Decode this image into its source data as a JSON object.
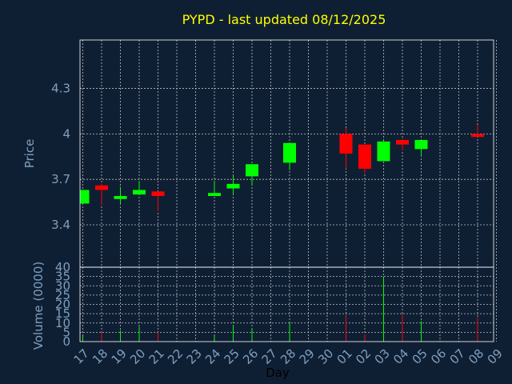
{
  "chart_data": {
    "type": "candlestick",
    "title": "PYPD - last updated 08/12/2025",
    "xlabel": "Day",
    "ylabel": "Price",
    "volume_label": "Volume (0000)",
    "ylim": [
      3.12,
      4.62
    ],
    "y_ticks": [
      "3.4",
      "3.7",
      "4",
      "4.3"
    ],
    "volume_ylim": [
      0,
      40
    ],
    "volume_ticks": [
      "0",
      "5",
      "10",
      "15",
      "20",
      "25",
      "30",
      "35",
      "40"
    ],
    "grid": true,
    "x_tick_labels": [
      "17",
      "18",
      "19",
      "20",
      "21",
      "22",
      "23",
      "24",
      "25",
      "26",
      "27",
      "28",
      "29",
      "30",
      "01",
      "02",
      "03",
      "04",
      "05",
      "06",
      "07",
      "08",
      "09"
    ],
    "colors": {
      "background": "#0f1f33",
      "title": "#ffff00",
      "axis_text": "#7f9fbf",
      "grid": "#bfbfbf",
      "up": "#00ff00",
      "down": "#ff0000",
      "frame": "#ffffff"
    },
    "candles": [
      {
        "x": "17",
        "open": 3.54,
        "close": 3.63,
        "high": 3.63,
        "low": 3.54,
        "volume": 3
      },
      {
        "x": "18",
        "open": 3.66,
        "close": 3.63,
        "high": 3.67,
        "low": 3.53,
        "volume": 5
      },
      {
        "x": "19",
        "open": 3.57,
        "close": 3.59,
        "high": 3.65,
        "low": 3.54,
        "volume": 6
      },
      {
        "x": "20",
        "open": 3.6,
        "close": 3.63,
        "high": 3.69,
        "low": 3.6,
        "volume": 8
      },
      {
        "x": "21",
        "open": 3.62,
        "close": 3.59,
        "high": 3.62,
        "low": 3.49,
        "volume": 5
      },
      {
        "x": "24",
        "open": 3.59,
        "close": 3.61,
        "high": 3.69,
        "low": 3.59,
        "volume": 3
      },
      {
        "x": "25",
        "open": 3.64,
        "close": 3.67,
        "high": 3.73,
        "low": 3.6,
        "volume": 9
      },
      {
        "x": "26",
        "open": 3.72,
        "close": 3.8,
        "high": 3.8,
        "low": 3.66,
        "volume": 7
      },
      {
        "x": "28",
        "open": 3.81,
        "close": 3.94,
        "high": 3.94,
        "low": 3.76,
        "volume": 10
      },
      {
        "x": "01",
        "open": 4.0,
        "close": 3.87,
        "high": 4.04,
        "low": 3.77,
        "volume": 14
      },
      {
        "x": "02",
        "open": 3.93,
        "close": 3.77,
        "high": 3.93,
        "low": 3.74,
        "volume": 4
      },
      {
        "x": "03",
        "open": 3.82,
        "close": 3.95,
        "high": 3.96,
        "low": 3.82,
        "volume": 35
      },
      {
        "x": "04",
        "open": 3.96,
        "close": 3.93,
        "high": 3.97,
        "low": 3.89,
        "volume": 15
      },
      {
        "x": "05",
        "open": 3.9,
        "close": 3.96,
        "high": 3.96,
        "low": 3.86,
        "volume": 11
      },
      {
        "x": "08",
        "open": 4.0,
        "close": 3.98,
        "high": 4.06,
        "low": 3.98,
        "volume": 13
      }
    ]
  }
}
